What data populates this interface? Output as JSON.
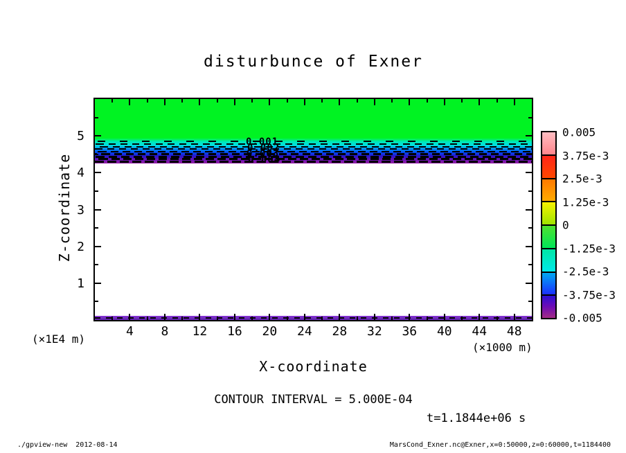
{
  "title": "disturbunce of Exner",
  "axes": {
    "x": {
      "label": "X-coordinate",
      "unit": "(×1000 m)",
      "range": [
        0,
        50
      ],
      "major_ticks": [
        4,
        8,
        12,
        16,
        20,
        24,
        28,
        32,
        36,
        40,
        44,
        48
      ],
      "minor_ticks": [
        2,
        6,
        10,
        14,
        18,
        22,
        26,
        30,
        34,
        38,
        42,
        46
      ]
    },
    "y": {
      "label": "Z-coordinate",
      "unit": "(×1E4 m)",
      "range": [
        0,
        6
      ],
      "major_ticks": [
        1,
        2,
        3,
        4,
        5
      ],
      "minor_ticks": [
        0.5,
        1.5,
        2.5,
        3.5,
        4.5,
        5.5
      ]
    }
  },
  "colorbar": {
    "labels": [
      "0.005",
      "3.75e-3",
      "2.5e-3",
      "1.25e-3",
      "0",
      "-1.25e-3",
      "-2.5e-3",
      "-3.75e-3",
      "-0.005"
    ],
    "cells": [
      [
        "#ffbdc2",
        "#ff858c"
      ],
      [
        "#ff2619",
        "#ff4800"
      ],
      [
        "#ff7900",
        "#ffaa00"
      ],
      [
        "#f6f200",
        "#9fe400"
      ],
      [
        "#4fe22e",
        "#00e558"
      ],
      [
        "#00e6a4",
        "#00e9e9"
      ],
      [
        "#00a9f1",
        "#1b2fff"
      ],
      [
        "#2c0fd6",
        "#6e0cb4",
        "#a22c85"
      ]
    ]
  },
  "plot_colors": {
    "field_green": "#00f322",
    "band_stops": [
      "#00f322",
      "#00e8b4",
      "#00e2e2",
      "#0090ee",
      "#0048f0",
      "#2a14cc",
      "#6a14b6",
      "#941ba3"
    ],
    "bottom_strip_stops": [
      "#8a35d6",
      "#5a21a8"
    ]
  },
  "contour_labels": [
    "0.001",
    "0.002",
    "0.003",
    "0.004"
  ],
  "contour_interval_text": "CONTOUR INTERVAL = 5.000E-04",
  "time_text": "t=1.1844e+06 s",
  "footer_left": "./gpview-new  2012-08-14",
  "footer_right": "MarsCond_Exner.nc@Exner,x=0:50000,z=0:60000,t=1184400",
  "chart_data": {
    "type": "heatmap",
    "title": "disturbunce of Exner",
    "xlabel": "X-coordinate (×1000 m)",
    "ylabel": "Z-coordinate (×1E4 m)",
    "xlim": [
      0,
      50
    ],
    "ylim": [
      0,
      6
    ],
    "x_ticks": [
      4,
      8,
      12,
      16,
      20,
      24,
      28,
      32,
      36,
      40,
      44,
      48
    ],
    "y_ticks": [
      1,
      2,
      3,
      4,
      5
    ],
    "contour_interval": 0.0005,
    "time_seconds": 1184400,
    "color_levels": [
      0.005,
      0.00375,
      0.0025,
      0.00125,
      0,
      -0.00125,
      -0.0025,
      -0.00375,
      -0.005
    ],
    "labeled_contours": [
      0.001,
      0.002,
      0.003,
      0.004
    ],
    "bands": [
      {
        "z_range": [
          4.9,
          6.0
        ],
        "value": "~0",
        "appearance": "solid green field"
      },
      {
        "z_range": [
          4.3,
          4.9
        ],
        "value": "0 to -0.005",
        "appearance": "dashed contour layer, green->cyan->blue->purple gradient"
      },
      {
        "z_range": [
          0.1,
          4.3
        ],
        "value": "none",
        "appearance": "white (no fill)"
      },
      {
        "z_range": [
          0.0,
          0.1
        ],
        "value": "~-0.005",
        "appearance": "thin purple strip with dashed contour"
      }
    ],
    "legend_position": "right colorbar",
    "grid": false
  }
}
